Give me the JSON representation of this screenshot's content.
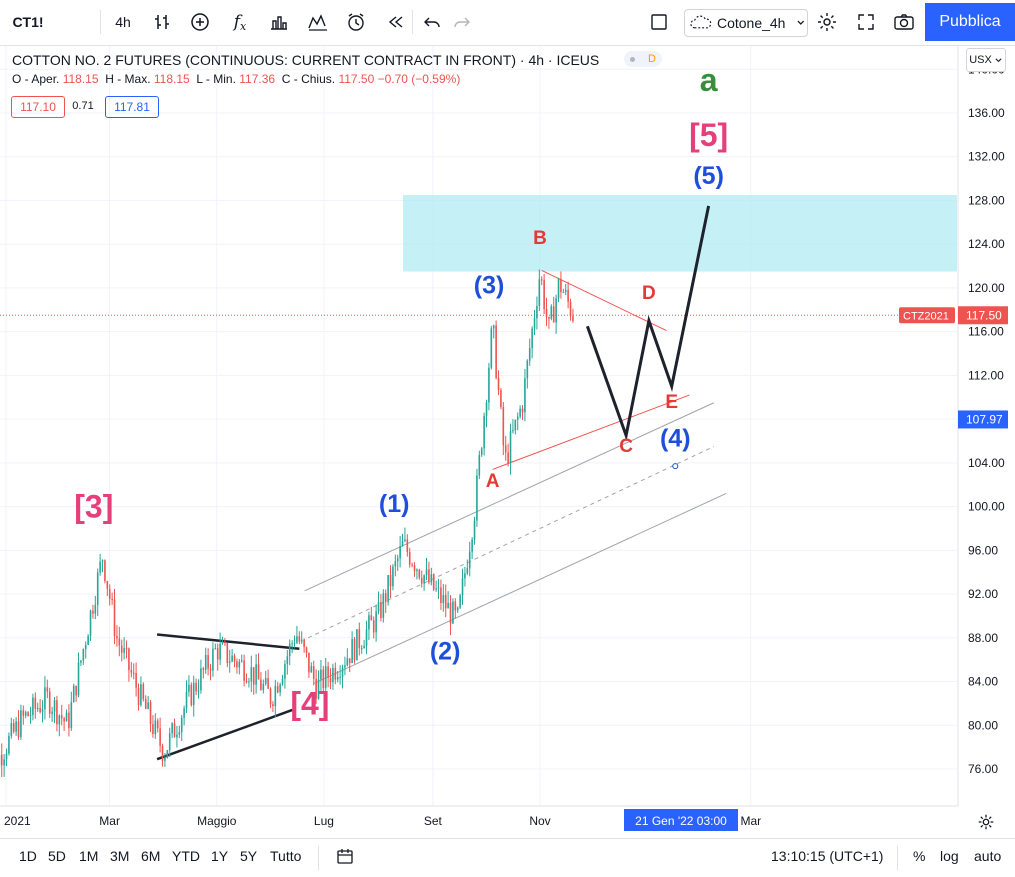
{
  "toolbar": {
    "symbol": "CT1!",
    "interval": "4h",
    "layout_name": "Cotone_4h",
    "publish_label": "Pubblica",
    "fx_label": "f",
    "fx_sub": "x"
  },
  "legend": {
    "title": "COTTON NO. 2 FUTURES (CONTINUOUS: CURRENT CONTRACT IN FRONT) · 4h · ICEUS",
    "badge": "D",
    "ohlc": [
      {
        "label": "O - Aper.",
        "value": "118.15"
      },
      {
        "label": "H - Max.",
        "value": "118.15"
      },
      {
        "label": "L - Min.",
        "value": "117.36"
      },
      {
        "label": "C - Chius.",
        "value": "117.50"
      }
    ],
    "change": "−0.70 (−0.59%)",
    "sell_price": "117.10",
    "spread": "0.71",
    "buy_price": "117.81"
  },
  "currency": "USX",
  "chart_data": {
    "type": "candlestick",
    "symbol_label": "CTZ2021",
    "last_price": "117.50",
    "marked_price": "107.97",
    "y_range": [
      72,
      141
    ],
    "y_ticks": [
      "140.00",
      "136.00",
      "132.00",
      "128.00",
      "124.00",
      "120.00",
      "116.00",
      "112.00",
      "108.00",
      "104.00",
      "100.00",
      "96.00",
      "92.00",
      "88.00",
      "84.00",
      "80.00",
      "76.00"
    ],
    "x_ticks": [
      {
        "label": "2021",
        "date": "2021-01-01"
      },
      {
        "label": "Mar",
        "date": "2021-03-01"
      },
      {
        "label": "Maggio",
        "date": "2021-05-01"
      },
      {
        "label": "Lug",
        "date": "2021-07-01"
      },
      {
        "label": "Set",
        "date": "2021-09-01"
      },
      {
        "label": "Nov",
        "date": "2021-11-01"
      },
      {
        "label": "Mar",
        "date": "2022-03-01"
      }
    ],
    "crosshair_time": "21 Gen '22   03:00",
    "price_path": [
      {
        "date": "2020-12-20",
        "price": 75.0
      },
      {
        "date": "2021-01-10",
        "price": 80.5
      },
      {
        "date": "2021-01-25",
        "price": 82.5
      },
      {
        "date": "2021-02-05",
        "price": 80.0
      },
      {
        "date": "2021-02-25",
        "price": 95.5
      },
      {
        "date": "2021-03-05",
        "price": 88.0
      },
      {
        "date": "2021-03-20",
        "price": 82.0
      },
      {
        "date": "2021-04-01",
        "price": 77.5
      },
      {
        "date": "2021-04-15",
        "price": 82.5
      },
      {
        "date": "2021-05-01",
        "price": 87.0
      },
      {
        "date": "2021-05-20",
        "price": 85.0
      },
      {
        "date": "2021-06-01",
        "price": 82.5
      },
      {
        "date": "2021-06-15",
        "price": 88.5
      },
      {
        "date": "2021-06-27",
        "price": 83.5
      },
      {
        "date": "2021-07-15",
        "price": 86.5
      },
      {
        "date": "2021-08-01",
        "price": 90.0
      },
      {
        "date": "2021-08-15",
        "price": 96.5
      },
      {
        "date": "2021-08-30",
        "price": 93.0
      },
      {
        "date": "2021-09-15",
        "price": 89.5
      },
      {
        "date": "2021-09-25",
        "price": 100.0
      },
      {
        "date": "2021-10-05",
        "price": 116.5
      },
      {
        "date": "2021-10-12",
        "price": 104.0
      },
      {
        "date": "2021-10-22",
        "price": 109.5
      },
      {
        "date": "2021-11-01",
        "price": 121.5
      },
      {
        "date": "2021-11-06",
        "price": 116.0
      },
      {
        "date": "2021-11-12",
        "price": 120.5
      },
      {
        "date": "2021-11-20",
        "price": 117.5
      }
    ],
    "projection": [
      {
        "date": "2021-11-28",
        "price": 116.5
      },
      {
        "date": "2021-12-20",
        "price": 106.5
      },
      {
        "date": "2022-01-02",
        "price": 117.0
      },
      {
        "date": "2022-01-15",
        "price": 111.0
      },
      {
        "date": "2022-02-05",
        "price": 127.5
      }
    ],
    "target_zone": {
      "from_date": "2021-08-15",
      "price_low": 121.5,
      "price_high": 128.5
    },
    "annotations": [
      {
        "text": "a",
        "date": "2022-02-05",
        "price": 138.0,
        "color": "#388e3c"
      },
      {
        "text": "[5]",
        "date": "2022-02-05",
        "price": 133.0,
        "color": "#e6407a"
      },
      {
        "text": "(5)",
        "date": "2022-02-05",
        "price": 129.5,
        "color": "#1e4fd8"
      },
      {
        "text": "B",
        "date": "2021-11-01",
        "price": 124.0,
        "color": "#e53935"
      },
      {
        "text": "(3)",
        "date": "2021-10-03",
        "price": 119.5,
        "color": "#1e4fd8"
      },
      {
        "text": "D",
        "date": "2022-01-02",
        "price": 119.0,
        "color": "#e53935"
      },
      {
        "text": "E",
        "date": "2022-01-15",
        "price": 109.0,
        "color": "#e53935"
      },
      {
        "text": "C",
        "date": "2021-12-20",
        "price": 105.0,
        "color": "#e53935"
      },
      {
        "text": "(4)",
        "date": "2022-01-17",
        "price": 105.5,
        "color": "#1e4fd8"
      },
      {
        "text": "A",
        "date": "2021-10-05",
        "price": 101.8,
        "color": "#e53935"
      },
      {
        "text": "(1)",
        "date": "2021-08-10",
        "price": 99.5,
        "color": "#1e4fd8"
      },
      {
        "text": "[3]",
        "date": "2021-02-20",
        "price": 99.0,
        "color": "#e6407a"
      },
      {
        "text": "(2)",
        "date": "2021-09-08",
        "price": 86.0,
        "color": "#1e4fd8"
      },
      {
        "text": "[4]",
        "date": "2021-06-23",
        "price": 81.0,
        "color": "#e6407a"
      }
    ]
  },
  "bottom": {
    "ranges": [
      "1D",
      "5D",
      "1M",
      "3M",
      "6M",
      "YTD",
      "1Y",
      "5Y",
      "Tutto"
    ],
    "time": "13:10:15 (UTC+1)",
    "percent": "%",
    "log": "log",
    "auto": "auto"
  }
}
